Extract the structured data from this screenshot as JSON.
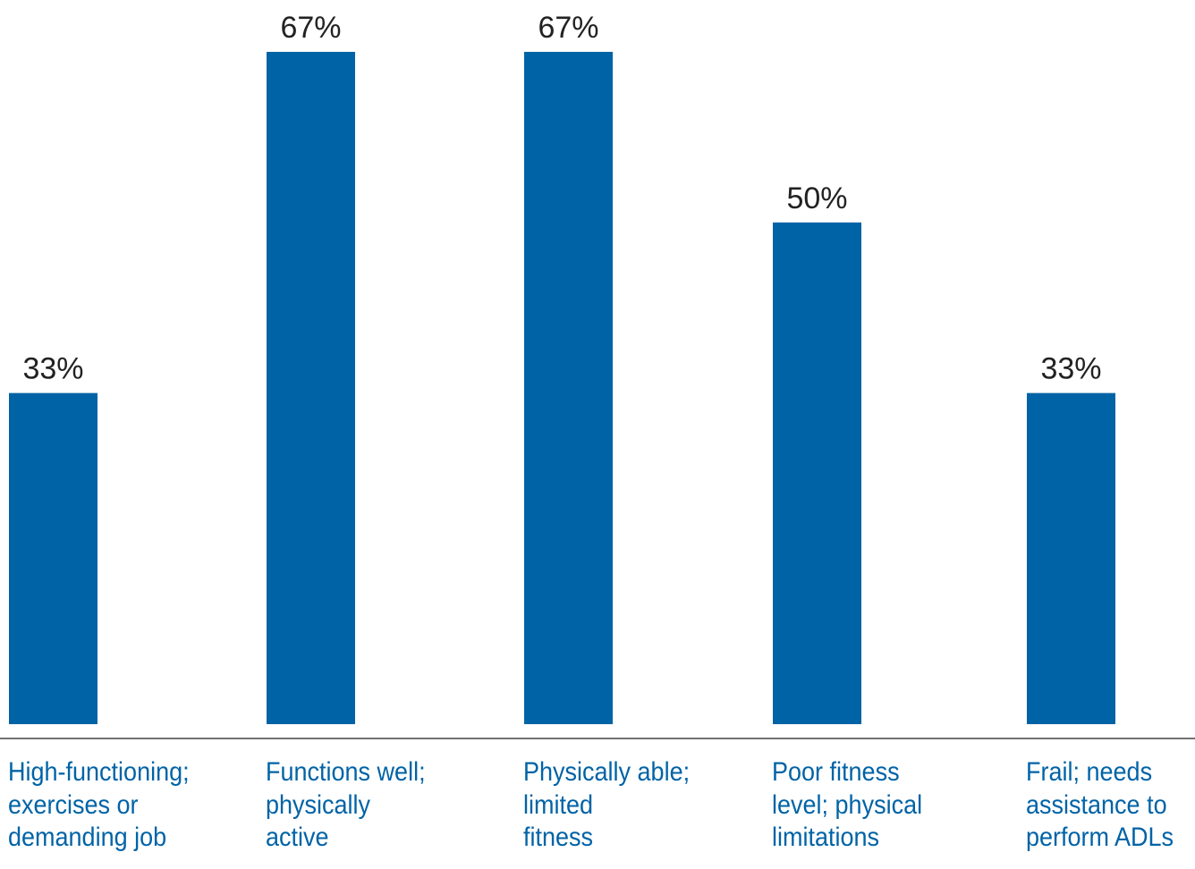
{
  "chart_data": {
    "type": "bar",
    "categories": [
      [
        "High-functioning;",
        "exercises or",
        "demanding job"
      ],
      [
        "Functions well;",
        "physically",
        "active"
      ],
      [
        "Physically able;",
        "limited",
        "fitness"
      ],
      [
        "Poor fitness",
        "level; physical",
        "limitations"
      ],
      [
        "Frail; needs",
        "assistance to",
        "perform ADLs"
      ]
    ],
    "values": [
      33,
      67,
      67,
      50,
      33
    ],
    "data_labels": [
      "33%",
      "67%",
      "67%",
      "50%",
      "33%"
    ],
    "title": "",
    "xlabel": "",
    "ylabel": "",
    "ylim": [
      0,
      67
    ],
    "grid": false,
    "bar_color": "#0063a6",
    "category_label_color": "#0063a6",
    "axis_color": "#444444"
  }
}
